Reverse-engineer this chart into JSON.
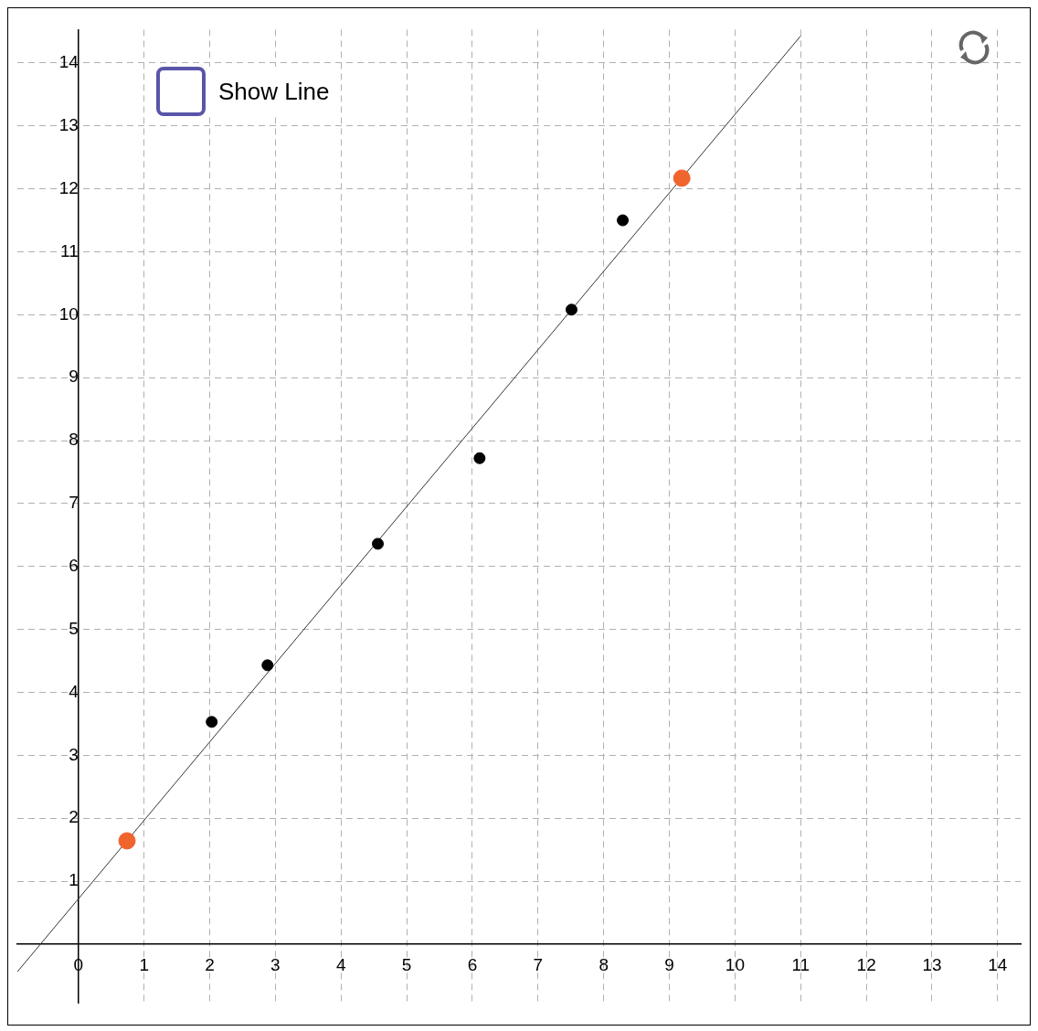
{
  "chart_data": {
    "type": "scatter",
    "xlim": [
      -0.93,
      14.35
    ],
    "ylim": [
      -0.94,
      14.53
    ],
    "xticks": [
      0,
      1,
      2,
      3,
      4,
      5,
      6,
      7,
      8,
      9,
      10,
      11,
      12,
      13,
      14
    ],
    "yticks": [
      {
        "value": 0,
        "label": null
      },
      1,
      2,
      3,
      4,
      5,
      6,
      7,
      8,
      9,
      10,
      11,
      12,
      13,
      14
    ],
    "grid": true,
    "legend": false,
    "marker": "circle",
    "annotations": [
      "Show Line"
    ],
    "series": [
      {
        "type": "scatter",
        "color": "#000000",
        "x": [
          2.03,
          2.88,
          4.56,
          6.11,
          7.51,
          8.29
        ],
        "values": [
          3.53,
          4.43,
          6.36,
          7.72,
          10.08,
          11.5
        ]
      },
      {
        "type": "scatter",
        "color": "#f0642d",
        "x": [
          0.74,
          9.19
        ],
        "values": [
          1.64,
          12.17
        ]
      },
      {
        "type": "line",
        "color": "#333333",
        "line_style": "solid",
        "marker": "none",
        "x": [
          -0.93,
          11.0
        ],
        "values": [
          -0.44,
          14.43
        ]
      }
    ]
  }
}
